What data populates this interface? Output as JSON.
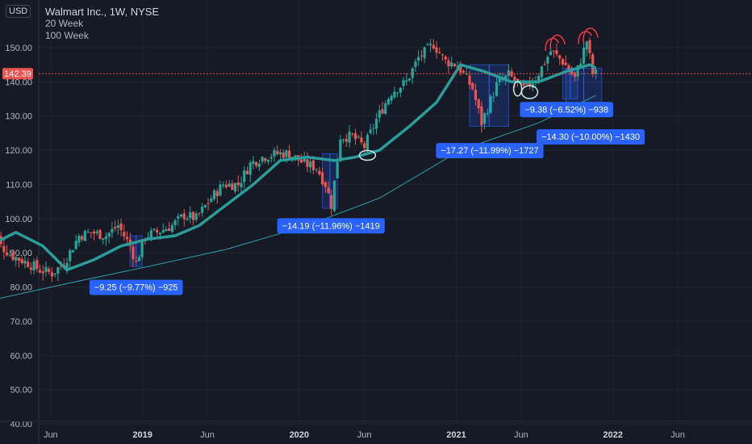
{
  "header": {
    "currency": "USD",
    "title": "Walmart Inc., 1W, NYSE",
    "indicators": [
      "20 Week",
      "100 Week"
    ]
  },
  "colors": {
    "background": "#161a25",
    "up": "#26a69a",
    "down": "#ef5350",
    "ma20": "#2a9d9b",
    "ma100": "#2aa0a8",
    "measure_fill": "#2962ff",
    "measure_label": "#2962ff",
    "price_line": "#ef5350",
    "drawing_red": "#f23645",
    "drawing_white": "#c8e6e6"
  },
  "chart_data": {
    "type": "candlestick",
    "ylim": [
      40,
      155
    ],
    "y_ticks": [
      {
        "value": 40,
        "label": "40.00"
      },
      {
        "value": 50,
        "label": "50.00"
      },
      {
        "value": 60,
        "label": "60.00"
      },
      {
        "value": 70,
        "label": "70.00"
      },
      {
        "value": 80,
        "label": "80.00"
      },
      {
        "value": 90,
        "label": "90.00"
      },
      {
        "value": 100,
        "label": "100.00"
      },
      {
        "value": 110,
        "label": "110.00"
      },
      {
        "value": 120,
        "label": "120.00"
      },
      {
        "value": 130,
        "label": "130.00"
      },
      {
        "value": 140,
        "label": "140.00"
      },
      {
        "value": 150,
        "label": "150.00"
      }
    ],
    "x_ticks": [
      {
        "date": "2018-06-01",
        "label": "Jun",
        "bold": false
      },
      {
        "date": "2019-01-01",
        "label": "2019",
        "bold": true
      },
      {
        "date": "2019-06-01",
        "label": "Jun",
        "bold": false
      },
      {
        "date": "2020-01-01",
        "label": "2020",
        "bold": true
      },
      {
        "date": "2020-06-01",
        "label": "Jun",
        "bold": false
      },
      {
        "date": "2021-01-01",
        "label": "2021",
        "bold": true
      },
      {
        "date": "2021-06-01",
        "label": "Jun",
        "bold": false
      },
      {
        "date": "2022-01-01",
        "label": "2022",
        "bold": true
      },
      {
        "date": "2022-06-01",
        "label": "Jun",
        "bold": false
      }
    ],
    "last_price": {
      "value": 142.39,
      "label": "142.39"
    },
    "price_path": [
      [
        "2018-01-08",
        106
      ],
      [
        "2018-02-12",
        92
      ],
      [
        "2018-03-12",
        89
      ],
      [
        "2018-04-16",
        87
      ],
      [
        "2018-05-14",
        85
      ],
      [
        "2018-06-11",
        84
      ],
      [
        "2018-07-09",
        87
      ],
      [
        "2018-08-13",
        95
      ],
      [
        "2018-09-10",
        96
      ],
      [
        "2018-10-15",
        95
      ],
      [
        "2018-11-12",
        98
      ],
      [
        "2018-12-10",
        92
      ],
      [
        "2018-12-24",
        87
      ],
      [
        "2019-01-14",
        95
      ],
      [
        "2019-02-11",
        96
      ],
      [
        "2019-03-18",
        98
      ],
      [
        "2019-04-15",
        101
      ],
      [
        "2019-05-13",
        100
      ],
      [
        "2019-06-17",
        106
      ],
      [
        "2019-07-15",
        110
      ],
      [
        "2019-08-19",
        110
      ],
      [
        "2019-09-16",
        116
      ],
      [
        "2019-10-14",
        118
      ],
      [
        "2019-11-18",
        119
      ],
      [
        "2019-12-16",
        119
      ],
      [
        "2020-01-20",
        116
      ],
      [
        "2020-02-17",
        115
      ],
      [
        "2020-03-09",
        110
      ],
      [
        "2020-03-23",
        104
      ],
      [
        "2020-04-13",
        124
      ],
      [
        "2020-05-11",
        124
      ],
      [
        "2020-06-08",
        121
      ],
      [
        "2020-07-06",
        129
      ],
      [
        "2020-08-10",
        137
      ],
      [
        "2020-09-14",
        140
      ],
      [
        "2020-10-12",
        147
      ],
      [
        "2020-11-16",
        151
      ],
      [
        "2020-12-14",
        146
      ],
      [
        "2021-01-11",
        145
      ],
      [
        "2021-02-15",
        138
      ],
      [
        "2021-03-08",
        128
      ],
      [
        "2021-04-12",
        139
      ],
      [
        "2021-05-10",
        142
      ],
      [
        "2021-06-14",
        138
      ],
      [
        "2021-07-12",
        141
      ],
      [
        "2021-08-16",
        149
      ],
      [
        "2021-09-13",
        146
      ],
      [
        "2021-10-11",
        141
      ],
      [
        "2021-11-08",
        152
      ],
      [
        "2021-11-22",
        142.4
      ]
    ],
    "series": [
      {
        "name": "20 Week",
        "type": "line",
        "values": [
          [
            "2018-01-08",
            92
          ],
          [
            "2018-03-12",
            96
          ],
          [
            "2018-05-14",
            92
          ],
          [
            "2018-07-09",
            85
          ],
          [
            "2018-09-10",
            88
          ],
          [
            "2018-11-12",
            92
          ],
          [
            "2019-01-14",
            94
          ],
          [
            "2019-03-18",
            95
          ],
          [
            "2019-05-13",
            98
          ],
          [
            "2019-07-15",
            104
          ],
          [
            "2019-09-16",
            110
          ],
          [
            "2019-11-18",
            117
          ],
          [
            "2020-01-20",
            118
          ],
          [
            "2020-03-23",
            117
          ],
          [
            "2020-05-11",
            118
          ],
          [
            "2020-07-06",
            120
          ],
          [
            "2020-09-14",
            127
          ],
          [
            "2020-11-16",
            134
          ],
          [
            "2021-01-11",
            145
          ],
          [
            "2021-03-08",
            143
          ],
          [
            "2021-05-10",
            140
          ],
          [
            "2021-07-12",
            140
          ],
          [
            "2021-09-13",
            143
          ],
          [
            "2021-11-08",
            145
          ],
          [
            "2021-11-22",
            144
          ]
        ]
      },
      {
        "name": "100 Week",
        "type": "line",
        "values": [
          [
            "2018-01-08",
            76
          ],
          [
            "2018-07-09",
            81
          ],
          [
            "2019-01-14",
            86
          ],
          [
            "2019-07-15",
            91
          ],
          [
            "2020-01-20",
            98
          ],
          [
            "2020-07-06",
            106
          ],
          [
            "2021-01-11",
            120
          ],
          [
            "2021-07-12",
            128
          ],
          [
            "2021-11-22",
            136
          ]
        ]
      }
    ],
    "annotations": [
      {
        "type": "price_range",
        "date_from": "2018-12-03",
        "date_to": "2018-12-31",
        "high": 95,
        "low": 86,
        "label": "−9.25 (−9.77%) −925"
      },
      {
        "type": "price_range",
        "date_from": "2020-02-24",
        "date_to": "2020-03-30",
        "high": 119,
        "low": 103,
        "label": "−14.19 (−11.96%) −1419"
      },
      {
        "type": "price_range",
        "date_from": "2021-02-01",
        "date_to": "2021-05-03",
        "high": 145,
        "low": 127,
        "label": "−17.27 (−11.99%) −1727"
      },
      {
        "type": "price_range",
        "date_from": "2021-09-06",
        "date_to": "2021-10-11",
        "high": 144,
        "low": 135,
        "label": "−9.38 (−6.52%) −938"
      },
      {
        "type": "price_range",
        "date_from": "2021-09-13",
        "date_to": "2021-12-06",
        "high": 144,
        "low": 132,
        "label": "−14.30 (−10.00%) −1430"
      }
    ]
  }
}
